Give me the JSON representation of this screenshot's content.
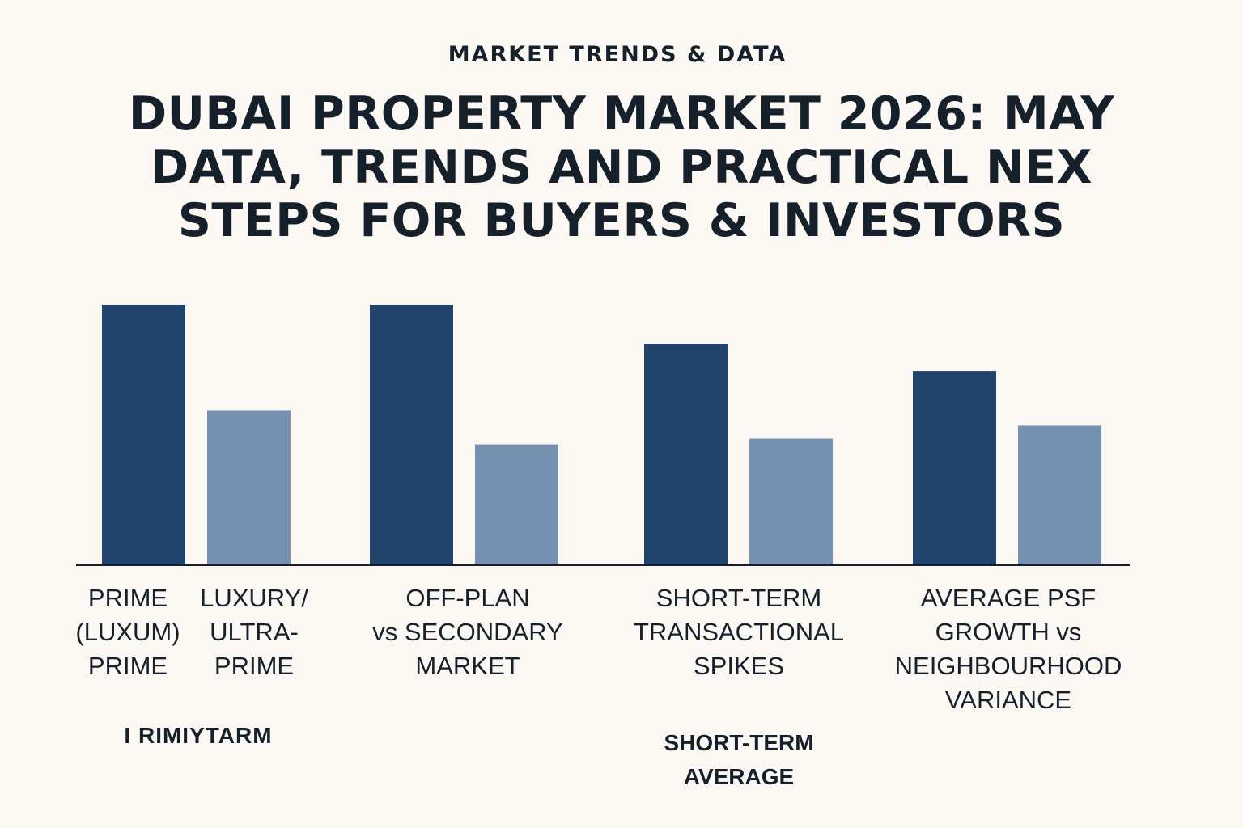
{
  "header": {
    "eyebrow": "MARKET TRENDS & DATA",
    "title_lines": [
      "DUBAI PROPERTY MARKET 2026: MAY",
      "DATA, TRENDS AND PRACTICAL NEX",
      "STEPS FOR BUYERS & INVESTORS"
    ]
  },
  "chart_data": {
    "type": "bar",
    "groups": [
      {
        "name": "prime-luxury",
        "bars": [
          {
            "value": 100,
            "color": "#1f436c",
            "label_lines": [
              "PRIME",
              "(LUXUM)",
              "PRIME"
            ]
          },
          {
            "value": 59.5,
            "color": "#7692b0",
            "label_lines": [
              "LUXURY/",
              "ULTRA-",
              "PRIME"
            ]
          }
        ]
      },
      {
        "name": "off-plan",
        "label_lines": [
          "OFF-PLAN",
          "vs SECONDARY",
          "MARKET"
        ],
        "bars": [
          {
            "value": 100,
            "color": "#1f436c"
          },
          {
            "value": 46.4,
            "color": "#7692b0"
          }
        ]
      },
      {
        "name": "short-term",
        "label_lines": [
          "SHORT-TERM",
          "TRANSACTIONAL",
          "SPIKES"
        ],
        "bars": [
          {
            "value": 85,
            "color": "#1f436c"
          },
          {
            "value": 48.6,
            "color": "#7692b0"
          }
        ]
      },
      {
        "name": "average-psf",
        "label_lines": [
          "AVERAGE PSF",
          "GROWTH vs",
          "NEIGHBOURHOOD",
          "VARIANCE"
        ],
        "bars": [
          {
            "value": 74.5,
            "color": "#1f436c"
          },
          {
            "value": 53.6,
            "color": "#7692b0"
          }
        ]
      }
    ],
    "ylim": [
      0,
      100
    ],
    "grid": false,
    "legend": "none",
    "annotations": [
      {
        "name": "prime-term-note",
        "lines": [
          "I RIMIYTARM"
        ]
      },
      {
        "name": "short-term-average-note",
        "lines": [
          "SHORT-TERM",
          "AVERAGE"
        ]
      }
    ]
  }
}
